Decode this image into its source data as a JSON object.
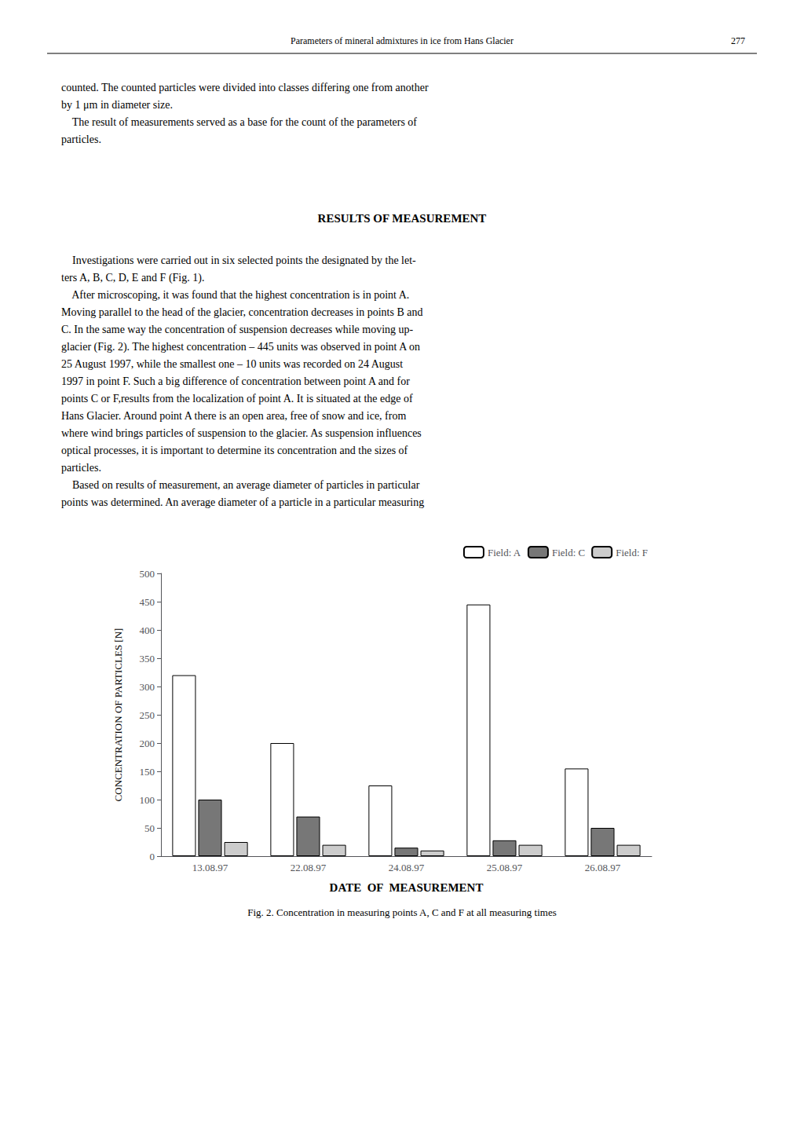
{
  "chart_data": {
    "type": "bar",
    "title": "Fig. 2. Concentration in measuring points A, C and F at all measuring times",
    "annotations": [
      "Parameters of mineral admixtures in ice from Hans Glacier",
      "277",
      "counted. The counted particles were divided into classes differing one from another\nby 1 μm in diameter size.\n    The result of measurements served as a base for the count of the parameters of\nparticles.",
      "RESULTS OF MEASUREMENT",
      "    Investigations were carried out in six selected points the designated by the let-\nters A, B, C, D, E and F (Fig. 1).\n    After microscoping, it was found that the highest concentration is in point A.\nMoving parallel to the head of the glacier, concentration decreases in points B and\nC. In the same way the concentration of suspension decreases while moving up-\nglacier (Fig. 2). The highest concentration – 445 units was observed in point A on\n25 August 1997, while the smallest one – 10 units was recorded on 24 August\n1997 in point F. Such a big difference of concentration between point A and for\npoints C or F,results from the localization of point A. It is situated at the edge of\nHans Glacier. Around point A there is an open area, free of snow and ice, from\nwhere wind brings particles of suspension to the glacier. As suspension influences\noptical processes, it is important to determine its concentration and the sizes of\nparticles.\n    Based on results of measurement, an average diameter of particles in particular\npoints was determined. An average diameter of a particle in a particular measuring"
    ],
    "xlabel": "DATE  OF  MEASUREMENT",
    "ylabel": "CONCENTRATION OF PARTICLES [N]",
    "categories": [
      "13.08.97",
      "22.08.97",
      "24.08.97",
      "25.08.97",
      "26.08.97"
    ],
    "series": [
      {
        "name": "Field: A",
        "color": "#ffffff",
        "values": [
          320,
          200,
          125,
          445,
          155
        ]
      },
      {
        "name": "Field: C",
        "color": "#777777",
        "values": [
          100,
          70,
          15,
          28,
          50
        ]
      },
      {
        "name": "Field: F",
        "color": "#cccccc",
        "values": [
          25,
          20,
          10,
          20,
          20
        ]
      }
    ],
    "ylim": [
      0,
      500
    ],
    "yticks": [
      0,
      50,
      100,
      150,
      200,
      250,
      300,
      350,
      400,
      450,
      500
    ],
    "grid": false,
    "legend": "upper right"
  }
}
